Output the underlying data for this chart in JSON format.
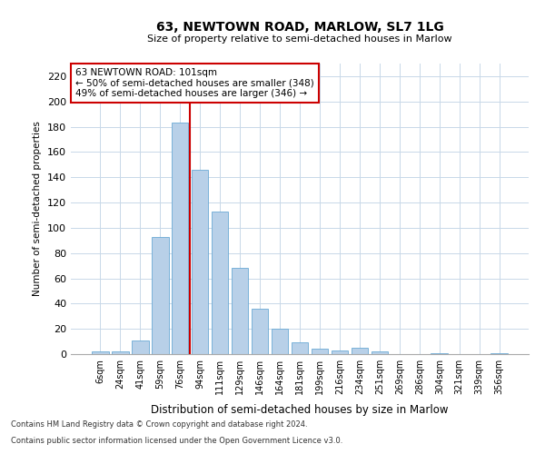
{
  "title1": "63, NEWTOWN ROAD, MARLOW, SL7 1LG",
  "title2": "Size of property relative to semi-detached houses in Marlow",
  "xlabel": "Distribution of semi-detached houses by size in Marlow",
  "ylabel": "Number of semi-detached properties",
  "categories": [
    "6sqm",
    "24sqm",
    "41sqm",
    "59sqm",
    "76sqm",
    "94sqm",
    "111sqm",
    "129sqm",
    "146sqm",
    "164sqm",
    "181sqm",
    "199sqm",
    "216sqm",
    "234sqm",
    "251sqm",
    "269sqm",
    "286sqm",
    "304sqm",
    "321sqm",
    "339sqm",
    "356sqm"
  ],
  "values": [
    2,
    2,
    11,
    93,
    183,
    146,
    113,
    68,
    36,
    20,
    9,
    4,
    3,
    5,
    2,
    0,
    0,
    1,
    0,
    0,
    1
  ],
  "bar_color": "#b8d0e8",
  "bar_edge_color": "#6aaad4",
  "vline_color": "#cc0000",
  "annotation_text": "63 NEWTOWN ROAD: 101sqm\n← 50% of semi-detached houses are smaller (348)\n49% of semi-detached houses are larger (346) →",
  "annotation_box_color": "#ffffff",
  "annotation_box_edge": "#cc0000",
  "ylim": [
    0,
    230
  ],
  "yticks": [
    0,
    20,
    40,
    60,
    80,
    100,
    120,
    140,
    160,
    180,
    200,
    220
  ],
  "footnote1": "Contains HM Land Registry data © Crown copyright and database right 2024.",
  "footnote2": "Contains public sector information licensed under the Open Government Licence v3.0.",
  "bg_color": "#ffffff",
  "grid_color": "#c8d8e8",
  "vline_bar_index": 4.5
}
